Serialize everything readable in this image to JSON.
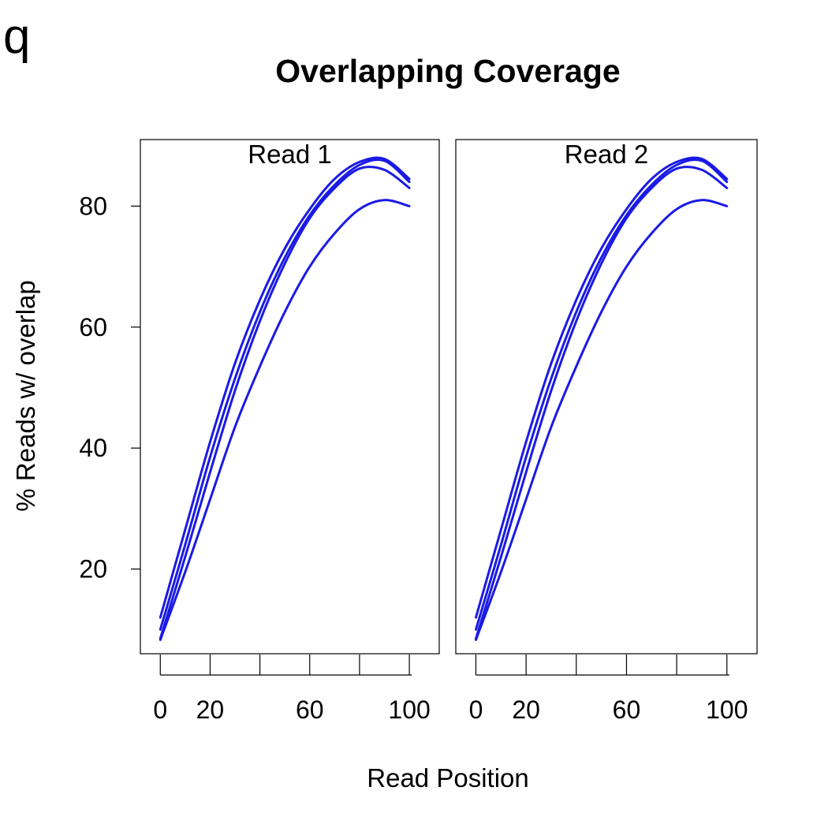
{
  "panel_letter": "q",
  "chart_data": {
    "type": "line",
    "title": "Overlapping Coverage",
    "xlabel": "Read Position",
    "ylabel": "% Reads w/ overlap",
    "xlim": [
      -8,
      112
    ],
    "ylim": [
      6,
      91
    ],
    "x_ticks": [
      0,
      20,
      40,
      60,
      80,
      100
    ],
    "x_tick_labels": [
      "0",
      "20",
      "",
      "60",
      "",
      "100"
    ],
    "y_ticks": [
      20,
      40,
      60,
      80
    ],
    "y_tick_labels": [
      "20",
      "40",
      "60",
      "80"
    ],
    "grid": false,
    "line_color": "#1a1ae6",
    "panels": [
      {
        "label": "Read 1",
        "x": [
          0,
          10,
          20,
          30,
          40,
          50,
          60,
          70,
          80,
          90,
          100
        ],
        "series": [
          {
            "y": [
              12,
              26.5,
              41,
              54,
              64.5,
              73,
              79.5,
              84.5,
              87.3,
              87.8,
              84.5
            ]
          },
          {
            "y": [
              10,
              24,
              38.5,
              51.5,
              62.5,
              71.5,
              78.5,
              83.5,
              86.8,
              87.5,
              84
            ]
          },
          {
            "y": [
              8.5,
              22,
              36,
              49.5,
              61,
              70.5,
              78,
              83,
              86.2,
              86,
              83
            ]
          },
          {
            "y": [
              8.3,
              19.5,
              31.5,
              43.5,
              53.5,
              62.5,
              70,
              75.5,
              79.5,
              81,
              80
            ]
          }
        ]
      },
      {
        "label": "Read 2",
        "x": [
          0,
          10,
          20,
          30,
          40,
          50,
          60,
          70,
          80,
          90,
          100
        ],
        "series": [
          {
            "y": [
              12,
              26.5,
              41,
              54,
              64.5,
              73,
              79.5,
              84.5,
              87.3,
              87.8,
              84.5
            ]
          },
          {
            "y": [
              10,
              24,
              38.5,
              51.5,
              62.5,
              71.5,
              78.5,
              83.5,
              86.8,
              87.5,
              84
            ]
          },
          {
            "y": [
              8.5,
              22,
              36,
              49.5,
              61,
              70.5,
              78,
              83,
              86.2,
              86,
              83
            ]
          },
          {
            "y": [
              8.3,
              19.5,
              31.5,
              43.5,
              53.5,
              62.5,
              70,
              75.5,
              79.5,
              81,
              80
            ]
          }
        ]
      }
    ]
  }
}
